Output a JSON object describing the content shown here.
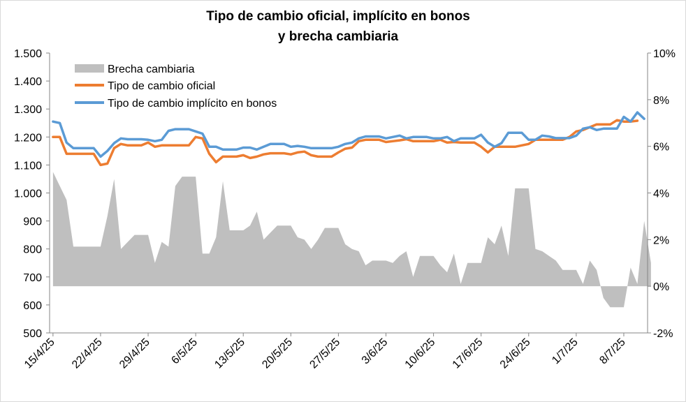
{
  "chart_data": {
    "type": "line",
    "title": [
      "Tipo de cambio oficial, implícito en bonos",
      "y brecha cambiaria"
    ],
    "left_axis": {
      "min": 500,
      "max": 1500,
      "step": 100,
      "tick_labels": [
        "500",
        "600",
        "700",
        "800",
        "900",
        "1.000",
        "1.100",
        "1.200",
        "1.300",
        "1.400",
        "1.500"
      ]
    },
    "right_axis": {
      "min": -2,
      "max": 10,
      "step": 2,
      "tick_labels": [
        "-2%",
        "0%",
        "2%",
        "4%",
        "6%",
        "8%",
        "10%"
      ]
    },
    "x_tick_labels": [
      "15/4/25",
      "22/4/25",
      "29/4/25",
      "6/5/25",
      "13/5/25",
      "20/5/25",
      "27/5/25",
      "3/6/25",
      "10/6/25",
      "17/6/25",
      "24/6/25",
      "1/7/25",
      "8/7/25"
    ],
    "num_days": 88,
    "legend": [
      "Brecha cambiaria",
      "Tipo de cambio oficial",
      "Tipo de cambio implícito en bonos"
    ],
    "colors": {
      "brecha": "#bfbfbf",
      "oficial": "#ed7d31",
      "implicito": "#5b9bd5",
      "axis": "#868686"
    },
    "series": [
      {
        "name": "Tipo de cambio oficial",
        "axis": "left",
        "points": [
          [
            0,
            1200
          ],
          [
            1,
            1200
          ],
          [
            2,
            1140
          ],
          [
            3,
            1140
          ],
          [
            4,
            1140
          ],
          [
            5,
            1140
          ],
          [
            6,
            1140
          ],
          [
            7,
            1100
          ],
          [
            8,
            1105
          ],
          [
            9,
            1160
          ],
          [
            10,
            1175
          ],
          [
            11,
            1170
          ],
          [
            12,
            1170
          ],
          [
            13,
            1170
          ],
          [
            14,
            1180
          ],
          [
            15,
            1165
          ],
          [
            16,
            1170
          ],
          [
            17,
            1170
          ],
          [
            18,
            1170
          ],
          [
            19,
            1170
          ],
          [
            20,
            1170
          ],
          [
            21,
            1200
          ],
          [
            22,
            1195
          ],
          [
            23,
            1140
          ],
          [
            24,
            1110
          ],
          [
            25,
            1130
          ],
          [
            26,
            1130
          ],
          [
            27,
            1130
          ],
          [
            28,
            1135
          ],
          [
            29,
            1125
          ],
          [
            30,
            1130
          ],
          [
            31,
            1138
          ],
          [
            32,
            1142
          ],
          [
            33,
            1142
          ],
          [
            34,
            1142
          ],
          [
            35,
            1138
          ],
          [
            36,
            1145
          ],
          [
            37,
            1148
          ],
          [
            38,
            1135
          ],
          [
            39,
            1130
          ],
          [
            40,
            1130
          ],
          [
            41,
            1130
          ],
          [
            42,
            1145
          ],
          [
            43,
            1158
          ],
          [
            44,
            1162
          ],
          [
            45,
            1185
          ],
          [
            46,
            1190
          ],
          [
            47,
            1190
          ],
          [
            48,
            1190
          ],
          [
            49,
            1182
          ],
          [
            50,
            1185
          ],
          [
            51,
            1188
          ],
          [
            52,
            1192
          ],
          [
            53,
            1185
          ],
          [
            54,
            1185
          ],
          [
            55,
            1185
          ],
          [
            56,
            1185
          ],
          [
            57,
            1190
          ],
          [
            58,
            1180
          ],
          [
            59,
            1182
          ],
          [
            60,
            1180
          ],
          [
            61,
            1180
          ],
          [
            62,
            1180
          ],
          [
            63,
            1165
          ],
          [
            64,
            1145
          ],
          [
            65,
            1165
          ],
          [
            66,
            1165
          ],
          [
            67,
            1165
          ],
          [
            68,
            1165
          ],
          [
            69,
            1170
          ],
          [
            70,
            1175
          ],
          [
            71,
            1190
          ],
          [
            72,
            1190
          ],
          [
            73,
            1190
          ],
          [
            74,
            1190
          ],
          [
            75,
            1190
          ],
          [
            76,
            1200
          ],
          [
            77,
            1220
          ],
          [
            78,
            1225
          ],
          [
            79,
            1235
          ],
          [
            80,
            1245
          ],
          [
            81,
            1245
          ],
          [
            82,
            1245
          ],
          [
            83,
            1260
          ],
          [
            84,
            1255
          ],
          [
            85,
            1255
          ],
          [
            86,
            1258
          ]
        ]
      },
      {
        "name": "Tipo de cambio implícito en bonos",
        "axis": "left",
        "points": [
          [
            0,
            1255
          ],
          [
            1,
            1250
          ],
          [
            2,
            1180
          ],
          [
            3,
            1160
          ],
          [
            4,
            1160
          ],
          [
            5,
            1160
          ],
          [
            6,
            1160
          ],
          [
            7,
            1130
          ],
          [
            8,
            1150
          ],
          [
            9,
            1178
          ],
          [
            10,
            1195
          ],
          [
            11,
            1192
          ],
          [
            12,
            1192
          ],
          [
            13,
            1192
          ],
          [
            14,
            1190
          ],
          [
            15,
            1185
          ],
          [
            16,
            1190
          ],
          [
            17,
            1222
          ],
          [
            18,
            1228
          ],
          [
            19,
            1228
          ],
          [
            20,
            1228
          ],
          [
            21,
            1220
          ],
          [
            22,
            1212
          ],
          [
            23,
            1165
          ],
          [
            24,
            1165
          ],
          [
            25,
            1155
          ],
          [
            26,
            1155
          ],
          [
            27,
            1155
          ],
          [
            28,
            1162
          ],
          [
            29,
            1162
          ],
          [
            30,
            1155
          ],
          [
            31,
            1165
          ],
          [
            32,
            1175
          ],
          [
            33,
            1175
          ],
          [
            34,
            1175
          ],
          [
            35,
            1165
          ],
          [
            36,
            1168
          ],
          [
            37,
            1165
          ],
          [
            38,
            1160
          ],
          [
            39,
            1160
          ],
          [
            40,
            1160
          ],
          [
            41,
            1160
          ],
          [
            42,
            1165
          ],
          [
            43,
            1175
          ],
          [
            44,
            1180
          ],
          [
            45,
            1195
          ],
          [
            46,
            1202
          ],
          [
            47,
            1202
          ],
          [
            48,
            1202
          ],
          [
            49,
            1195
          ],
          [
            50,
            1200
          ],
          [
            51,
            1205
          ],
          [
            52,
            1195
          ],
          [
            53,
            1200
          ],
          [
            54,
            1200
          ],
          [
            55,
            1200
          ],
          [
            56,
            1195
          ],
          [
            57,
            1195
          ],
          [
            58,
            1200
          ],
          [
            59,
            1185
          ],
          [
            60,
            1195
          ],
          [
            61,
            1195
          ],
          [
            62,
            1195
          ],
          [
            63,
            1208
          ],
          [
            64,
            1180
          ],
          [
            65,
            1165
          ],
          [
            66,
            1178
          ],
          [
            67,
            1215
          ],
          [
            68,
            1215
          ],
          [
            69,
            1215
          ],
          [
            70,
            1190
          ],
          [
            71,
            1190
          ],
          [
            72,
            1205
          ],
          [
            73,
            1202
          ],
          [
            74,
            1196
          ],
          [
            75,
            1196
          ],
          [
            76,
            1196
          ],
          [
            77,
            1205
          ],
          [
            78,
            1230
          ],
          [
            79,
            1235
          ],
          [
            80,
            1225
          ],
          [
            81,
            1230
          ],
          [
            82,
            1230
          ],
          [
            83,
            1230
          ],
          [
            84,
            1272
          ],
          [
            85,
            1255
          ],
          [
            86,
            1288
          ],
          [
            87,
            1265
          ]
        ]
      },
      {
        "name": "Brecha cambiaria",
        "axis": "right",
        "points": [
          [
            0,
            4.9
          ],
          [
            1,
            4.3
          ],
          [
            2,
            3.7
          ],
          [
            3,
            1.7
          ],
          [
            4,
            1.7
          ],
          [
            5,
            1.7
          ],
          [
            6,
            1.7
          ],
          [
            7,
            1.7
          ],
          [
            8,
            3.0
          ],
          [
            9,
            4.6
          ],
          [
            10,
            1.6
          ],
          [
            11,
            1.9
          ],
          [
            12,
            2.2
          ],
          [
            13,
            2.2
          ],
          [
            14,
            2.2
          ],
          [
            15,
            1.0
          ],
          [
            16,
            1.9
          ],
          [
            17,
            1.7
          ],
          [
            18,
            4.3
          ],
          [
            19,
            4.7
          ],
          [
            20,
            4.7
          ],
          [
            21,
            4.7
          ],
          [
            22,
            1.4
          ],
          [
            23,
            1.4
          ],
          [
            24,
            2.1
          ],
          [
            25,
            4.5
          ],
          [
            26,
            2.4
          ],
          [
            27,
            2.4
          ],
          [
            28,
            2.4
          ],
          [
            29,
            2.6
          ],
          [
            30,
            3.2
          ],
          [
            31,
            2.0
          ],
          [
            32,
            2.3
          ],
          [
            33,
            2.6
          ],
          [
            34,
            2.6
          ],
          [
            35,
            2.6
          ],
          [
            36,
            2.1
          ],
          [
            37,
            2.0
          ],
          [
            38,
            1.6
          ],
          [
            39,
            2.0
          ],
          [
            40,
            2.5
          ],
          [
            41,
            2.5
          ],
          [
            42,
            2.5
          ],
          [
            43,
            1.8
          ],
          [
            44,
            1.6
          ],
          [
            45,
            1.5
          ],
          [
            46,
            0.9
          ],
          [
            47,
            1.1
          ],
          [
            48,
            1.1
          ],
          [
            49,
            1.1
          ],
          [
            50,
            1.0
          ],
          [
            51,
            1.3
          ],
          [
            52,
            1.5
          ],
          [
            53,
            0.4
          ],
          [
            54,
            1.3
          ],
          [
            55,
            1.3
          ],
          [
            56,
            1.3
          ],
          [
            57,
            0.9
          ],
          [
            58,
            0.6
          ],
          [
            59,
            1.4
          ],
          [
            60,
            0.1
          ],
          [
            61,
            1.0
          ],
          [
            62,
            1.0
          ],
          [
            63,
            1.0
          ],
          [
            64,
            2.1
          ],
          [
            65,
            1.8
          ],
          [
            66,
            2.6
          ],
          [
            67,
            1.3
          ],
          [
            68,
            4.2
          ],
          [
            69,
            4.2
          ],
          [
            70,
            4.2
          ],
          [
            71,
            1.6
          ],
          [
            72,
            1.5
          ],
          [
            73,
            1.3
          ],
          [
            74,
            1.1
          ],
          [
            75,
            0.7
          ],
          [
            76,
            0.7
          ],
          [
            77,
            0.7
          ],
          [
            78,
            0.1
          ],
          [
            79,
            1.1
          ],
          [
            80,
            0.7
          ],
          [
            81,
            -0.5
          ],
          [
            82,
            -0.9
          ],
          [
            83,
            -0.9
          ],
          [
            84,
            -0.9
          ],
          [
            85,
            0.8
          ],
          [
            86,
            0.1
          ],
          [
            87,
            2.8
          ],
          [
            88,
            1.0
          ]
        ]
      }
    ]
  }
}
